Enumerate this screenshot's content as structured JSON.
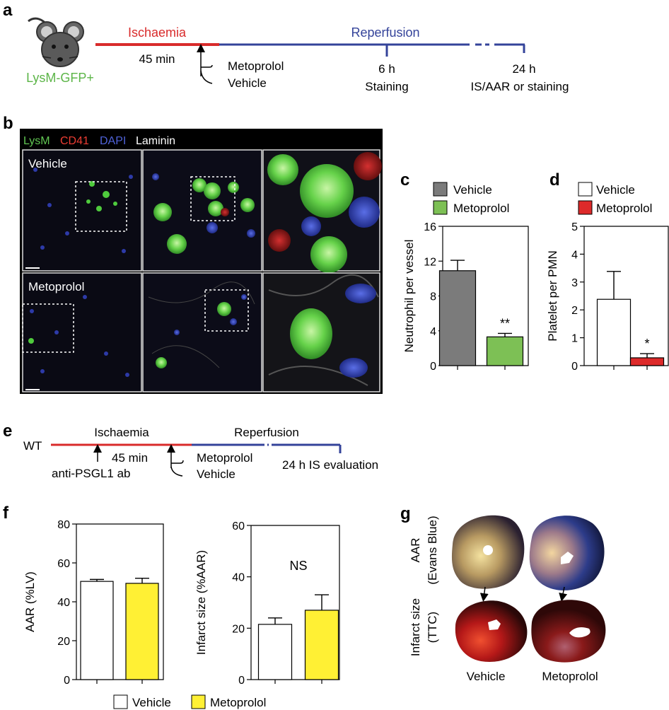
{
  "panel_labels": {
    "a": "a",
    "b": "b",
    "c": "c",
    "d": "d",
    "e": "e",
    "f": "f",
    "g": "g"
  },
  "panel_a": {
    "mouse_label": "LysM-GFP+",
    "ischaemia": "Ischaemia",
    "reperfusion": "Reperfusion",
    "duration": "45 min",
    "treatment_1": "Metoprolol",
    "treatment_2": "Vehicle",
    "t1_time": "6 h",
    "t1_label": "Staining",
    "t2_time": "24 h",
    "t2_label": "IS/AAR or staining",
    "colors": {
      "ischaemia": "#d92b2b",
      "reperfusion": "#34439a",
      "mouse_label": "#5cb548"
    }
  },
  "panel_b": {
    "legend": [
      {
        "text": "LysM",
        "color": "#61c652"
      },
      {
        "text": "CD41",
        "color": "#ec3d33"
      },
      {
        "text": "DAPI",
        "color": "#4f62d8"
      },
      {
        "text": "Laminin",
        "color": "#ffffff"
      }
    ],
    "row_labels": [
      "Vehicle",
      "Metoprolol"
    ]
  },
  "panel_e": {
    "strain": "WT",
    "ischaemia": "Ischaemia",
    "reperfusion": "Reperfusion",
    "duration": "45 min",
    "antibody": "anti-PSGL1 ab",
    "treatment_1": "Metoprolol",
    "treatment_2": "Vehicle",
    "endpoint": "24 h IS evaluation"
  },
  "panel_g": {
    "row_label_1a": "AAR",
    "row_label_1b": "(Evans Blue)",
    "row_label_2a": "Infarct size",
    "row_label_2b": "(TTC)",
    "col_labels": [
      "Vehicle",
      "Metoprolol"
    ]
  },
  "legend_f": [
    {
      "text": "Vehicle",
      "color": "#ffffff"
    },
    {
      "text": "Metoprolol",
      "color": "#fff034"
    }
  ],
  "chart_data": [
    {
      "id": "c",
      "type": "bar",
      "categories": [
        "Vehicle",
        "Metoprolol"
      ],
      "values": [
        10.9,
        3.3
      ],
      "errors": [
        1.2,
        0.4
      ],
      "colors": [
        "#7b7b7b",
        "#7dc055"
      ],
      "ylabel": "Neutrophil per vessel",
      "ylim": [
        0,
        16
      ],
      "yticks": [
        0,
        4,
        8,
        12,
        16
      ],
      "annotation": "**",
      "legend_position": "top",
      "legend": [
        {
          "text": "Vehicle",
          "color": "#7b7b7b"
        },
        {
          "text": "Metoprolol",
          "color": "#7dc055"
        }
      ]
    },
    {
      "id": "d",
      "type": "bar",
      "categories": [
        "Vehicle",
        "Metoprolol"
      ],
      "values": [
        2.38,
        0.28
      ],
      "errors": [
        1.0,
        0.15
      ],
      "colors": [
        "#ffffff",
        "#dd2a2a"
      ],
      "ylabel": "Platelet per PMN",
      "ylim": [
        0,
        5
      ],
      "yticks": [
        0,
        1,
        2,
        3,
        4,
        5
      ],
      "annotation": "*",
      "legend_position": "top",
      "legend": [
        {
          "text": "Vehicle",
          "color": "#ffffff"
        },
        {
          "text": "Metoprolol",
          "color": "#dd2a2a"
        }
      ]
    },
    {
      "id": "f1",
      "type": "bar",
      "categories": [
        "Vehicle",
        "Metoprolol"
      ],
      "values": [
        50.5,
        49.5
      ],
      "errors": [
        1.0,
        2.6
      ],
      "colors": [
        "#ffffff",
        "#fff034"
      ],
      "ylabel": "AAR (%LV)",
      "ylim": [
        0,
        80
      ],
      "yticks": [
        0,
        20,
        40,
        60,
        80
      ],
      "annotation": ""
    },
    {
      "id": "f2",
      "type": "bar",
      "categories": [
        "Vehicle",
        "Metoprolol"
      ],
      "values": [
        21.5,
        27.0
      ],
      "errors": [
        2.5,
        6.0
      ],
      "colors": [
        "#ffffff",
        "#fff034"
      ],
      "ylabel": "Infarct size (%AAR)",
      "ylim": [
        0,
        60
      ],
      "yticks": [
        0,
        20,
        40,
        60
      ],
      "annotation": "NS"
    }
  ]
}
